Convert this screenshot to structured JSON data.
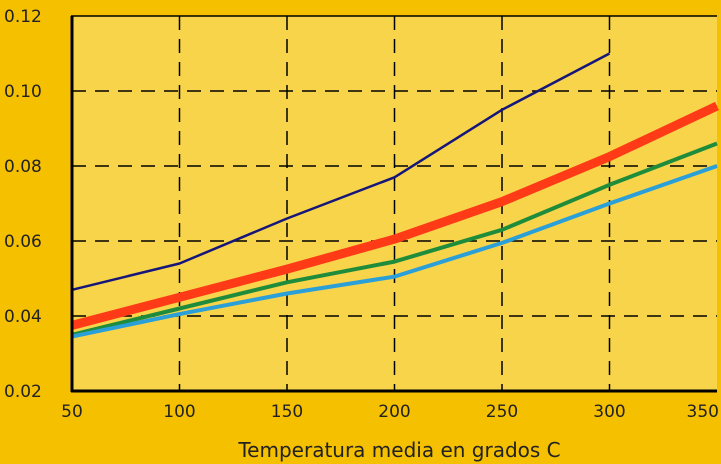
{
  "chart_data": {
    "type": "line",
    "title": "",
    "xlabel": "Temperatura media en grados C",
    "ylabel": "",
    "xlim": [
      50,
      350
    ],
    "ylim": [
      0.02,
      0.12
    ],
    "x_ticks": [
      50,
      100,
      150,
      200,
      250,
      300,
      350
    ],
    "y_ticks": [
      "0.02",
      "0.04",
      "0.06",
      "0.08",
      "0.10",
      "0.12"
    ],
    "grid": true,
    "colors": {
      "background": "#f5c000",
      "plot_area": "#f7d44a",
      "axis": "#000000",
      "grid": "#000000"
    },
    "series": [
      {
        "color": "#16167a",
        "width": 2.5,
        "points": [
          [
            50,
            0.047
          ],
          [
            100,
            0.054
          ],
          [
            150,
            0.066
          ],
          [
            200,
            0.077
          ],
          [
            250,
            0.095
          ],
          [
            300,
            0.11
          ]
        ]
      },
      {
        "color": "#ff3a17",
        "width": 9,
        "points": [
          [
            50,
            0.0375
          ],
          [
            100,
            0.045
          ],
          [
            150,
            0.0525
          ],
          [
            200,
            0.0605
          ],
          [
            250,
            0.0705
          ],
          [
            300,
            0.0825
          ],
          [
            350,
            0.096
          ]
        ]
      },
      {
        "color": "#1f8c3b",
        "width": 4,
        "points": [
          [
            50,
            0.035
          ],
          [
            100,
            0.042
          ],
          [
            150,
            0.049
          ],
          [
            200,
            0.0545
          ],
          [
            250,
            0.063
          ],
          [
            300,
            0.075
          ],
          [
            350,
            0.086
          ]
        ]
      },
      {
        "color": "#2a9fd8",
        "width": 4,
        "points": [
          [
            50,
            0.0345
          ],
          [
            100,
            0.0405
          ],
          [
            150,
            0.046
          ],
          [
            200,
            0.0505
          ],
          [
            250,
            0.0595
          ],
          [
            300,
            0.07
          ],
          [
            350,
            0.08
          ]
        ]
      }
    ]
  }
}
